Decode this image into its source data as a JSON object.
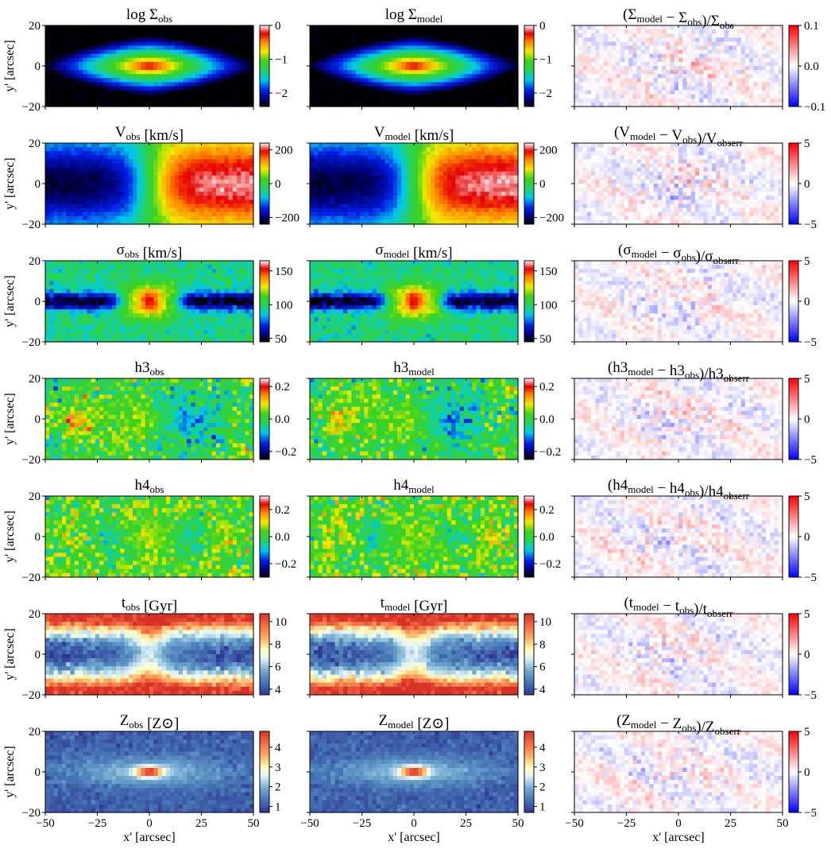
{
  "figure": {
    "x_axis_label": "x' [arcsec]",
    "y_axis_label": "y' [arcsec]"
  },
  "chart_data": {
    "type": "heatmap",
    "layout": "7 rows x 3 columns of maps: observed, model, residual",
    "xlim": [
      -50,
      50
    ],
    "ylim": [
      -20,
      20
    ],
    "x_ticks": [
      "−50",
      "−25",
      "0",
      "25",
      "50"
    ],
    "y_ticks": [
      "20",
      "0",
      "−20"
    ],
    "colormaps": {
      "maps": "rainbow (black-blue-cyan-green-yellow-red-white)",
      "age": "blue-white-orange (RdYlBu reversed)",
      "residual": "blue-white-red (bwr)"
    },
    "rows": [
      {
        "key": "sigma_density",
        "obs": {
          "title": "log Σobs",
          "cbar_ticks": [
            "0",
            "−1",
            "−2"
          ],
          "vmin": -2.4,
          "vmax": 0
        },
        "model": {
          "title": "log Σmodel",
          "cbar_ticks": [
            "0",
            "−1",
            "−2"
          ],
          "vmin": -2.4,
          "vmax": 0
        },
        "resid": {
          "title": "(Σmodel − Σobs)/Σobs",
          "cbar_ticks": [
            "0.1",
            "0.0",
            "−0.1"
          ],
          "vmin": -0.1,
          "vmax": 0.1
        }
      },
      {
        "key": "velocity",
        "obs": {
          "title": "Vobs [km/s]",
          "cbar_ticks": [
            "200",
            "0",
            "−200"
          ],
          "vmin": -240,
          "vmax": 240
        },
        "model": {
          "title": "Vmodel [km/s]",
          "cbar_ticks": [
            "200",
            "0",
            "−200"
          ],
          "vmin": -240,
          "vmax": 240
        },
        "resid": {
          "title": "(Vmodel − Vobs)/Vobserr",
          "cbar_ticks": [
            "5",
            "0",
            "−5"
          ],
          "vmin": -5,
          "vmax": 5
        }
      },
      {
        "key": "dispersion",
        "obs": {
          "title": "σobs [km/s]",
          "cbar_ticks": [
            "150",
            "100",
            "50"
          ],
          "vmin": 45,
          "vmax": 165
        },
        "model": {
          "title": "σmodel [km/s]",
          "cbar_ticks": [
            "150",
            "100",
            "50"
          ],
          "vmin": 45,
          "vmax": 165
        },
        "resid": {
          "title": "(σmodel − σobs)/σobserr",
          "cbar_ticks": [
            "5",
            "0",
            "−5"
          ],
          "vmin": -5,
          "vmax": 5
        }
      },
      {
        "key": "h3",
        "obs": {
          "title": "h3obs",
          "cbar_ticks": [
            "0.2",
            "0.0",
            "−0.2"
          ],
          "vmin": -0.25,
          "vmax": 0.25
        },
        "model": {
          "title": "h3model",
          "cbar_ticks": [
            "0.2",
            "0.0",
            "−0.2"
          ],
          "vmin": -0.25,
          "vmax": 0.25
        },
        "resid": {
          "title": "(h3model − h3obs)/h3obserr",
          "cbar_ticks": [
            "5",
            "0",
            "−5"
          ],
          "vmin": -5,
          "vmax": 5
        }
      },
      {
        "key": "h4",
        "obs": {
          "title": "h4obs",
          "cbar_ticks": [
            "0.2",
            "0.0",
            "−0.2"
          ],
          "vmin": -0.3,
          "vmax": 0.3
        },
        "model": {
          "title": "h4model",
          "cbar_ticks": [
            "0.2",
            "0.0",
            "−0.2"
          ],
          "vmin": -0.3,
          "vmax": 0.3
        },
        "resid": {
          "title": "(h4model − h4obs)/h4obserr",
          "cbar_ticks": [
            "5",
            "0",
            "−5"
          ],
          "vmin": -5,
          "vmax": 5
        }
      },
      {
        "key": "age",
        "obs": {
          "title": "tobs [Gyr]",
          "cbar_ticks": [
            "10",
            "8",
            "6",
            "4"
          ],
          "vmin": 3.5,
          "vmax": 10.7
        },
        "model": {
          "title": "tmodel [Gyr]",
          "cbar_ticks": [
            "10",
            "8",
            "6",
            "4"
          ],
          "vmin": 3.5,
          "vmax": 10.7
        },
        "resid": {
          "title": "(tmodel − tobs)/tobserr",
          "cbar_ticks": [
            "5",
            "0",
            "−5"
          ],
          "vmin": -5,
          "vmax": 5
        }
      },
      {
        "key": "metallicity",
        "obs": {
          "title": "Zobs [Z⊙]",
          "cbar_ticks": [
            "4",
            "3",
            "2",
            "1"
          ],
          "vmin": 0.7,
          "vmax": 4.8
        },
        "model": {
          "title": "Zmodel [Z⊙]",
          "cbar_ticks": [
            "4",
            "3",
            "2",
            "1"
          ],
          "vmin": 0.7,
          "vmax": 4.8
        },
        "resid": {
          "title": "(Zmodel − Zobs)/Zobserr",
          "cbar_ticks": [
            "5",
            "0",
            "−5"
          ],
          "vmin": -5,
          "vmax": 5
        }
      }
    ]
  }
}
